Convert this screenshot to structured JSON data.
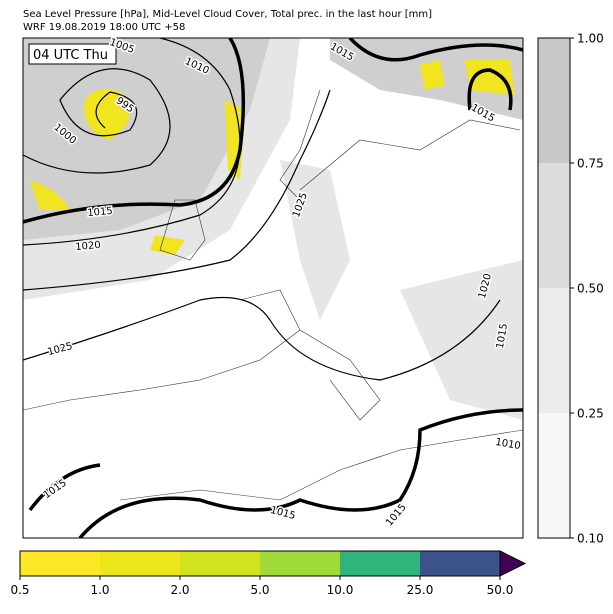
{
  "header": {
    "title_lines": [
      "Sea Level Pressure [hPa], Mid-Level Cloud Cover, Total prec. in the last hour [mm]",
      "WRF 19.08.2019 18:00 UTC +58"
    ]
  },
  "map": {
    "time_label": "04 UTC Thu",
    "isobar_labels": [
      "1005",
      "1010",
      "995",
      "1000",
      "1015",
      "1020",
      "1025",
      "1015",
      "1015",
      "1015",
      "1020",
      "1015",
      "1010",
      "1015",
      "1015",
      "1025"
    ]
  },
  "cloud_colorbar": {
    "ticks": [
      {
        "value": 0.1,
        "label": "0.10"
      },
      {
        "value": 0.25,
        "label": "0.25"
      },
      {
        "value": 0.5,
        "label": "0.50"
      },
      {
        "value": 0.75,
        "label": "0.75"
      },
      {
        "value": 1,
        "label": "1.00"
      }
    ],
    "colors": [
      "#f7f7f7",
      "#ebebeb",
      "#dcdcdc",
      "#c8c8c8"
    ]
  },
  "precip_colorbar": {
    "ticks": [
      0.5,
      {
        "value": 1,
        "label": "1.0"
      },
      {
        "value": 2,
        "label": "2.0"
      },
      {
        "value": 5,
        "label": "5.0"
      },
      {
        "value": 10,
        "label": "10.0"
      },
      {
        "value": 25,
        "label": "25.0"
      },
      {
        "value": 50,
        "label": "50.0"
      }
    ],
    "colors": [
      "#fde725",
      "#ece51b",
      "#d2e21b",
      "#a0da39",
      "#2fb47c",
      "#3b528b"
    ],
    "extend_color": "#440154"
  }
}
